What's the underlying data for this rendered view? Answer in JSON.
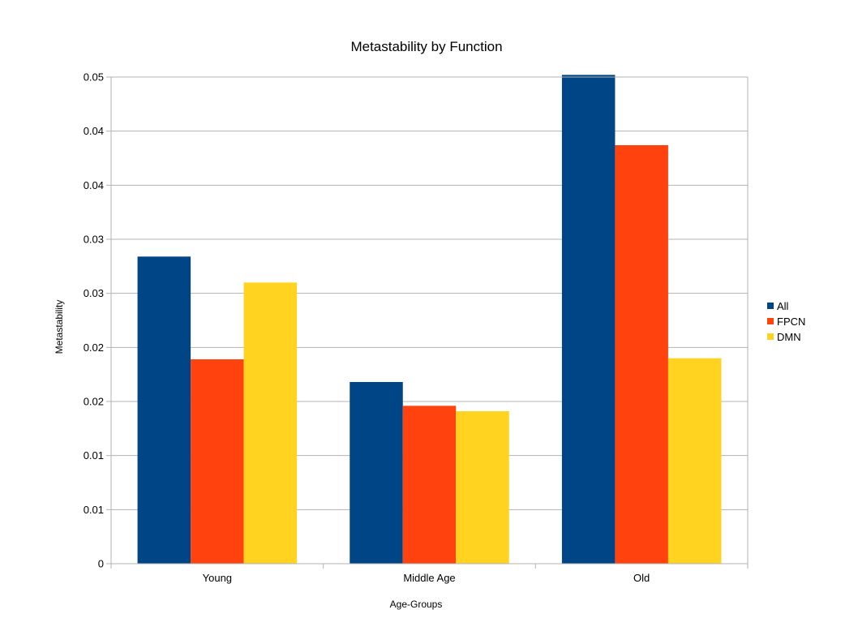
{
  "chart_data": {
    "type": "bar",
    "title": "Metastability by Function",
    "xlabel": "Age-Groups",
    "ylabel": "Metastability",
    "categories": [
      "Young",
      "Middle Age",
      "Old"
    ],
    "series": [
      {
        "name": "All",
        "color": "#004586",
        "values": [
          0.0284,
          0.0168,
          0.0452
        ]
      },
      {
        "name": "FPCN",
        "color": "#ff420e",
        "values": [
          0.0189,
          0.0146,
          0.0387
        ]
      },
      {
        "name": "DMN",
        "color": "#ffd320",
        "values": [
          0.026,
          0.0141,
          0.019
        ]
      }
    ],
    "ylim": [
      0,
      0.045
    ],
    "y_ticks": [
      {
        "value": 0,
        "label": "0"
      },
      {
        "value": 0.005,
        "label": "0.01"
      },
      {
        "value": 0.01,
        "label": "0.01"
      },
      {
        "value": 0.015,
        "label": "0.02"
      },
      {
        "value": 0.02,
        "label": "0.02"
      },
      {
        "value": 0.025,
        "label": "0.03"
      },
      {
        "value": 0.03,
        "label": "0.03"
      },
      {
        "value": 0.035,
        "label": "0.04"
      },
      {
        "value": 0.04,
        "label": "0.04"
      },
      {
        "value": 0.045,
        "label": "0.05"
      }
    ],
    "grid": true,
    "legend_position": "right"
  }
}
